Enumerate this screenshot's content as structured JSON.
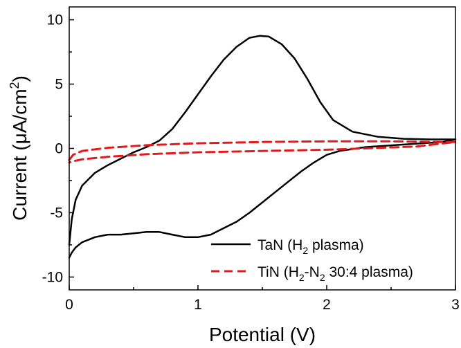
{
  "chart_data": {
    "type": "line",
    "xlabel": "Potential (V)",
    "ylabel_main": "Current (μA/cm",
    "ylabel_sup": "2",
    "ylabel_close": ")",
    "xlim": [
      0,
      3
    ],
    "ylim": [
      -11,
      11
    ],
    "xticks": [
      0,
      1,
      2,
      3
    ],
    "yticks": [
      -10,
      -5,
      0,
      5,
      10
    ],
    "xtick_labels": [
      "0",
      "1",
      "2",
      "3"
    ],
    "ytick_labels": [
      "-10",
      "-5",
      "0",
      "5",
      "10"
    ],
    "grid": false,
    "legend_position": "bottom-right",
    "series": [
      {
        "legend_pre": "TaN (H",
        "legend_sub1": "2",
        "legend_post": " plasma)",
        "color": "#000000",
        "dash": "solid",
        "x": [
          0.0,
          0.02,
          0.05,
          0.1,
          0.2,
          0.3,
          0.4,
          0.5,
          0.6,
          0.7,
          0.8,
          0.9,
          1.0,
          1.1,
          1.2,
          1.3,
          1.4,
          1.48,
          1.55,
          1.65,
          1.75,
          1.85,
          1.95,
          2.05,
          2.2,
          2.4,
          2.6,
          2.8,
          2.95,
          3.0,
          2.9,
          2.6,
          2.3,
          2.1,
          2.0,
          1.9,
          1.8,
          1.7,
          1.6,
          1.5,
          1.4,
          1.3,
          1.2,
          1.1,
          1.0,
          0.9,
          0.8,
          0.7,
          0.6,
          0.5,
          0.4,
          0.3,
          0.2,
          0.1,
          0.05,
          0.02,
          0.0
        ],
        "y": [
          -7.5,
          -5.5,
          -4.0,
          -2.9,
          -1.9,
          -1.3,
          -0.8,
          -0.3,
          0.1,
          0.6,
          1.5,
          2.8,
          4.2,
          5.6,
          6.9,
          7.9,
          8.6,
          8.75,
          8.7,
          8.1,
          7.0,
          5.4,
          3.6,
          2.2,
          1.3,
          0.9,
          0.75,
          0.7,
          0.7,
          0.7,
          0.5,
          0.3,
          0.1,
          -0.2,
          -0.5,
          -1.1,
          -1.8,
          -2.6,
          -3.4,
          -4.2,
          -5.0,
          -5.7,
          -6.2,
          -6.7,
          -6.9,
          -6.9,
          -6.7,
          -6.5,
          -6.5,
          -6.6,
          -6.7,
          -6.7,
          -6.9,
          -7.3,
          -7.7,
          -8.1,
          -8.5
        ]
      },
      {
        "legend_pre": "TiN (H",
        "legend_sub1": "2",
        "legend_mid": "-N",
        "legend_sub2": "2",
        "legend_post": " 30:4 plasma)",
        "color": "#e31a1c",
        "dash": "dashed",
        "x": [
          0.0,
          0.03,
          0.1,
          0.3,
          0.6,
          1.0,
          1.5,
          2.0,
          2.5,
          2.9,
          3.0,
          2.7,
          2.3,
          2.0,
          1.5,
          1.0,
          0.6,
          0.3,
          0.1,
          0.03,
          0.0
        ],
        "y": [
          -0.9,
          -0.5,
          -0.2,
          0.05,
          0.25,
          0.4,
          0.5,
          0.55,
          0.55,
          0.5,
          0.5,
          0.15,
          0.0,
          -0.1,
          -0.2,
          -0.3,
          -0.45,
          -0.65,
          -0.85,
          -1.0,
          -1.1
        ]
      }
    ]
  }
}
